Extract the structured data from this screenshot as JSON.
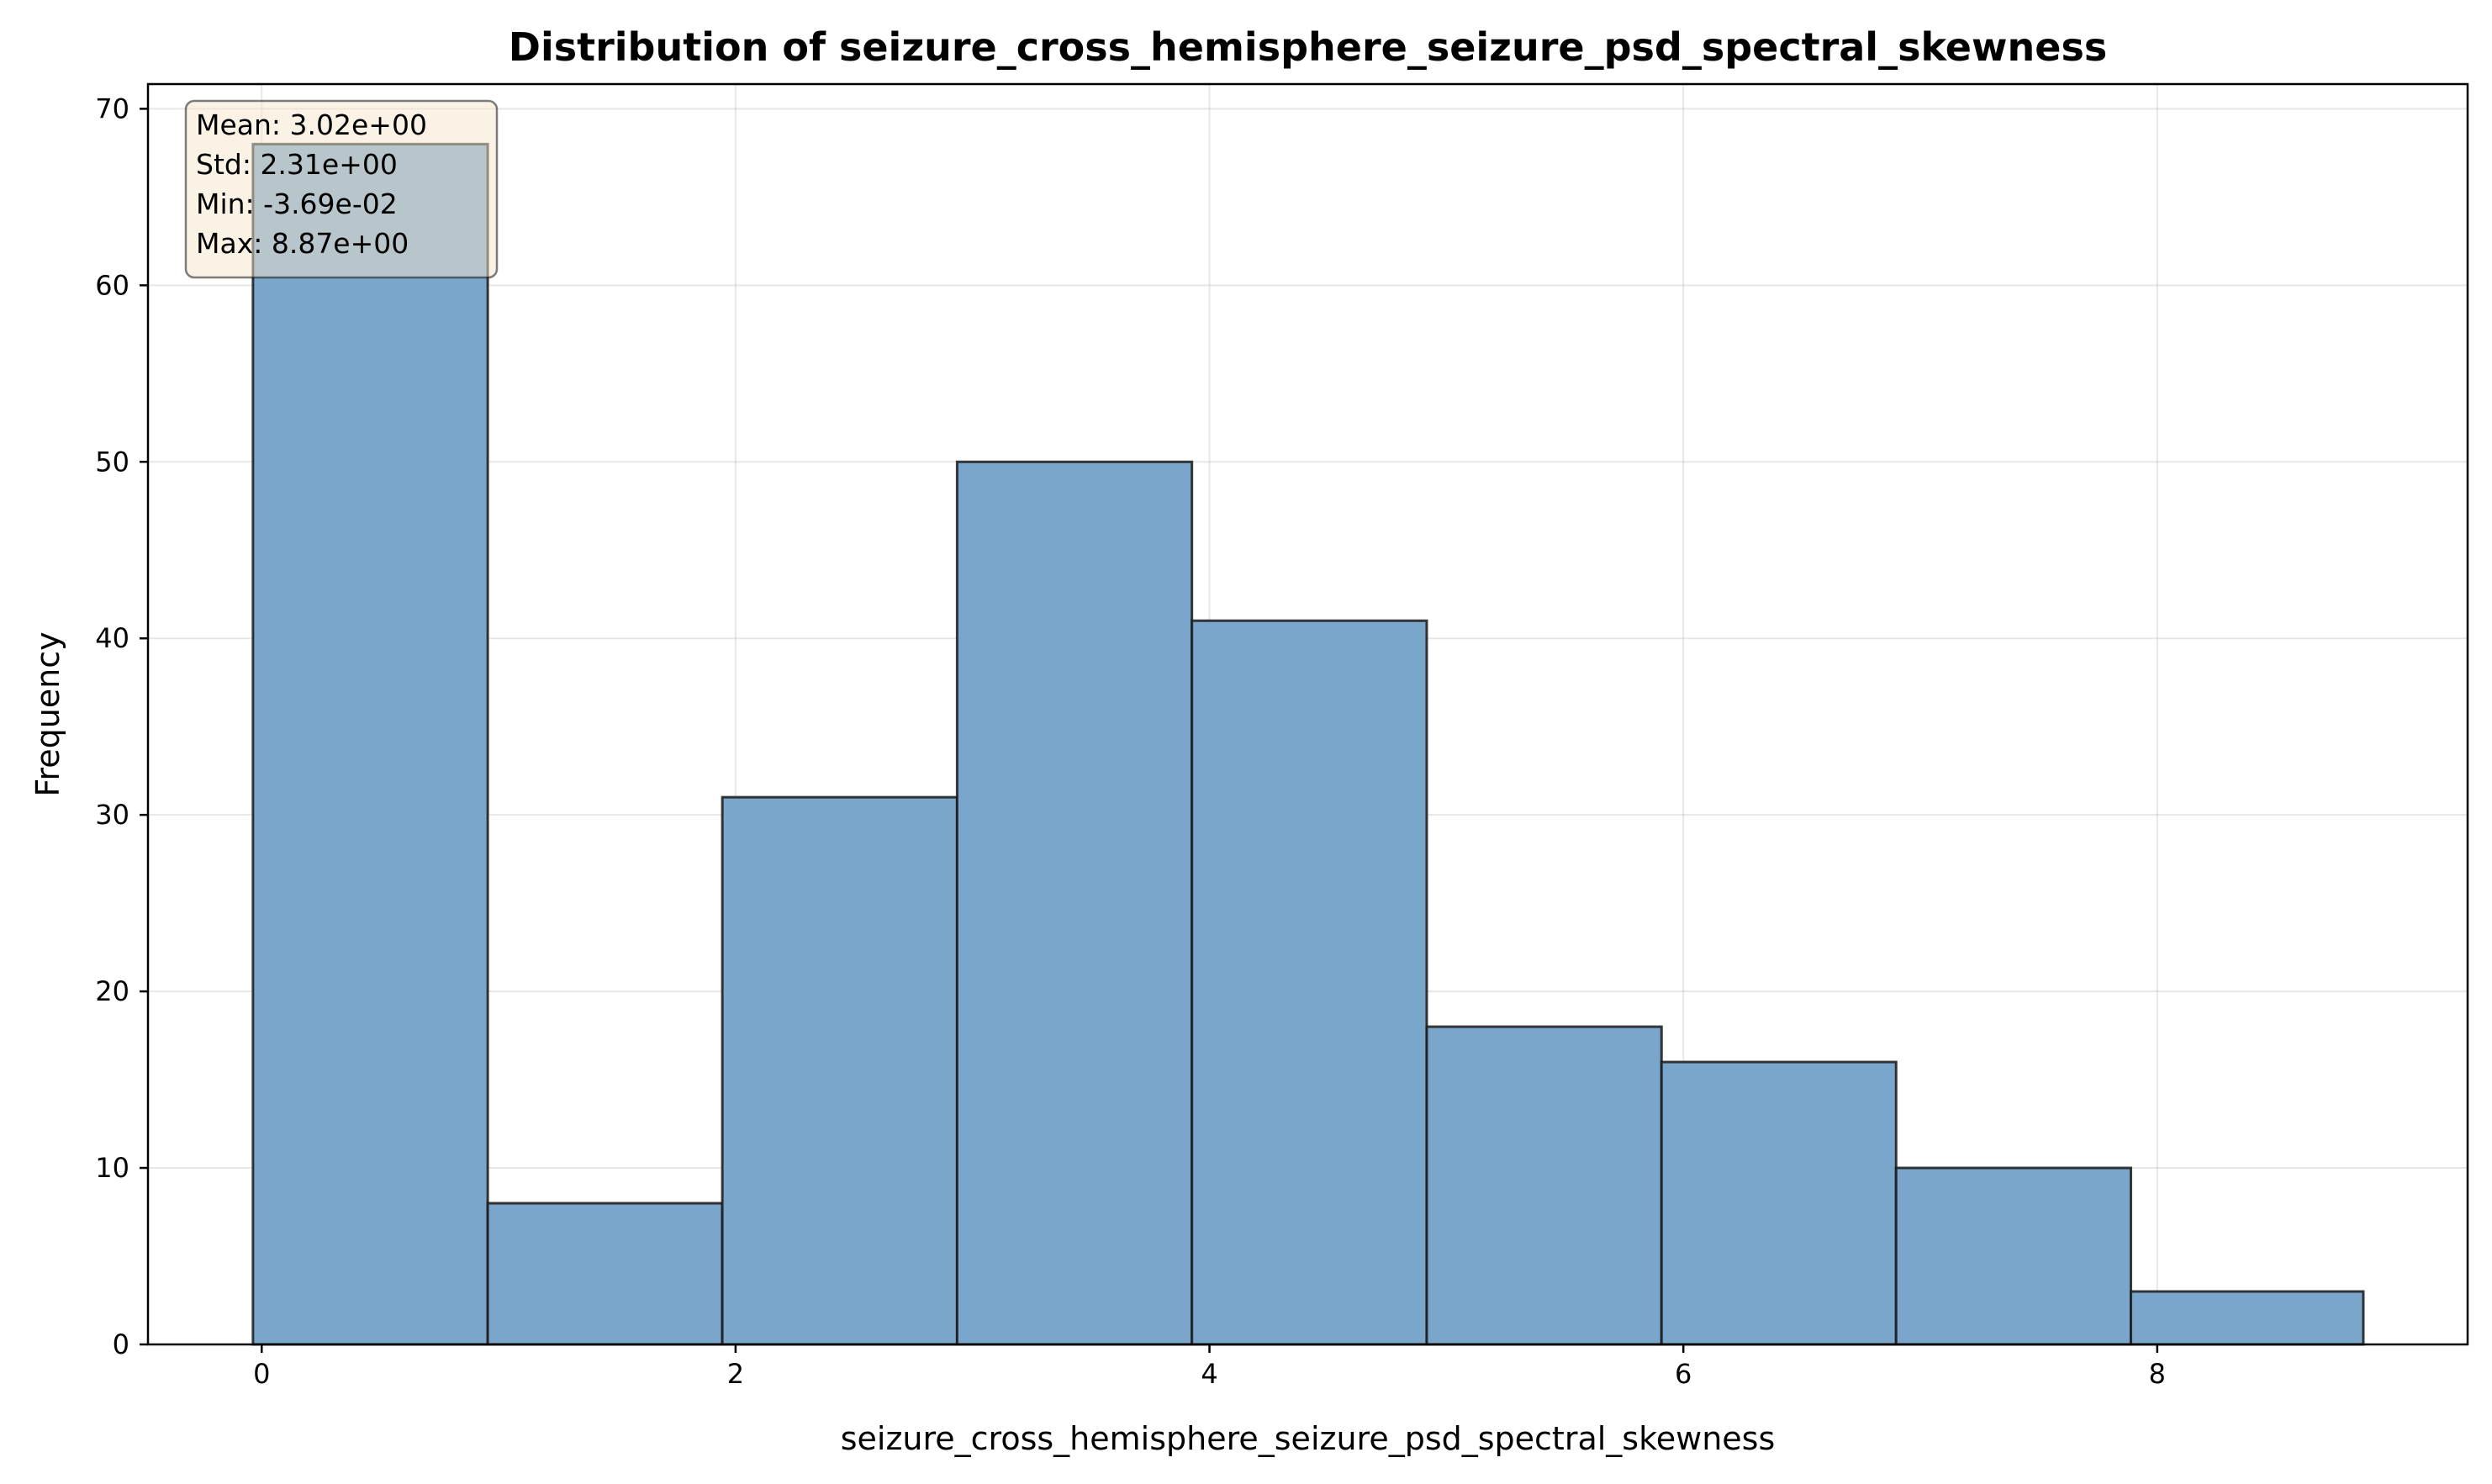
{
  "chart_data": {
    "type": "bar",
    "title": "Distribution of seizure_cross_hemisphere_seizure_psd_spectral_skewness",
    "xlabel": "seizure_cross_hemisphere_seizure_psd_spectral_skewness",
    "ylabel": "Frequency",
    "xlim": [
      -0.48,
      9.31
    ],
    "ylim": [
      0,
      71.4
    ],
    "xticks": [
      0,
      2,
      4,
      6,
      8
    ],
    "yticks": [
      0,
      10,
      20,
      30,
      40,
      50,
      60,
      70
    ],
    "bin_edges": [
      -0.0369,
      0.954,
      1.944,
      2.935,
      3.926,
      4.917,
      5.908,
      6.898,
      7.889,
      8.87
    ],
    "values": [
      68,
      8,
      31,
      50,
      41,
      18,
      16,
      10,
      3
    ],
    "grid": true,
    "bar_color": "#7ba6cb",
    "edge_color": "#1a1a1a",
    "stats_box": {
      "position": "top-left",
      "background": "#f5e6cb",
      "lines": [
        "Mean: 3.02e+00",
        "Std: 2.31e+00",
        "Min: -3.69e-02",
        "Max: 8.87e+00"
      ]
    }
  }
}
